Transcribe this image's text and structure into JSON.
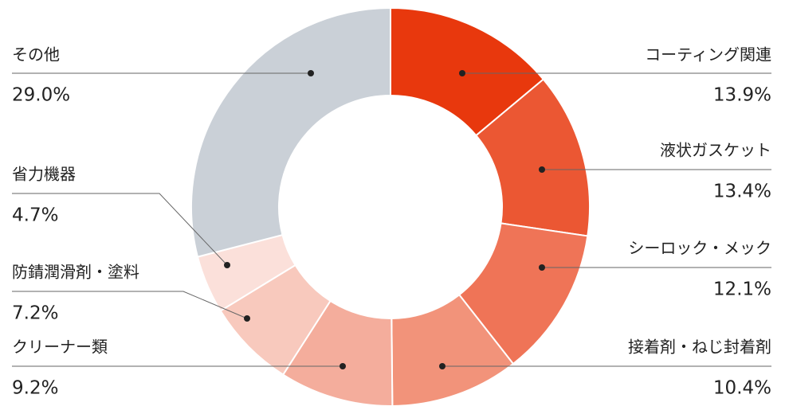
{
  "chart_data": {
    "type": "donut",
    "categories": [
      "コーティング関連",
      "液状ガスケット",
      "シーロック・メック",
      "接着剤・ねじ封着剤",
      "クリーナー類",
      "防錆潤滑剤・塗料",
      "省力機器",
      "その他"
    ],
    "values": [
      13.9,
      13.4,
      12.1,
      10.4,
      9.2,
      7.2,
      4.7,
      29.0
    ],
    "value_labels": [
      "13.9%",
      "13.4%",
      "12.1%",
      "10.4%",
      "9.2%",
      "7.2%",
      "4.7%",
      "29.0%"
    ],
    "colors": [
      "#e8380d",
      "#eb5733",
      "#ef7457",
      "#f2937a",
      "#f4ad9c",
      "#f8c9bd",
      "#fbe0da",
      "#cad0d7"
    ]
  }
}
